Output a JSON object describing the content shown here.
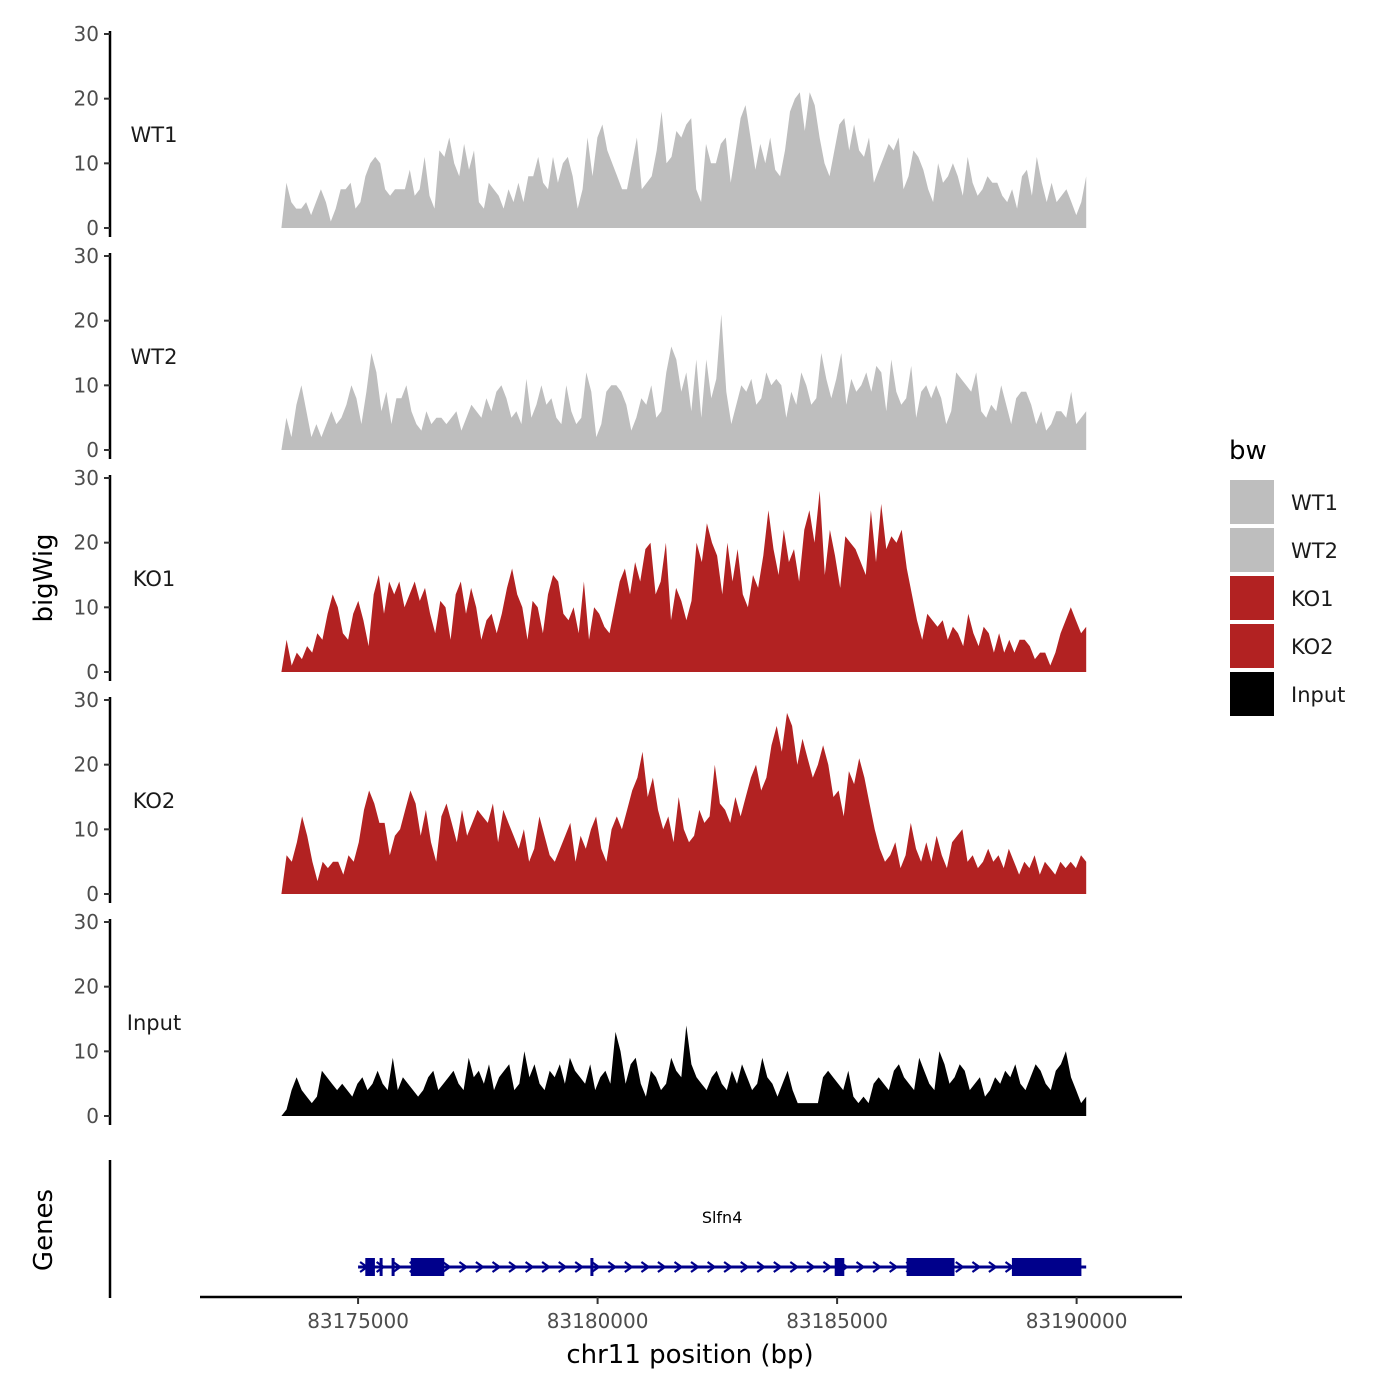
{
  "chart_data": {
    "type": "area",
    "title": "",
    "xlabel": "chr11 position (bp)",
    "ylabel": "bigWig",
    "genes_label": "Genes",
    "xlim": [
      83171700,
      83192200
    ],
    "ylim": [
      0,
      30
    ],
    "x_ticks": [
      83175000,
      83180000,
      83185000,
      83190000
    ],
    "x_tick_labels": [
      "83175000",
      "83180000",
      "83185000",
      "83190000"
    ],
    "y_ticks": [
      0,
      10,
      20,
      30
    ],
    "y_tick_labels": [
      "0",
      "10",
      "20",
      "30"
    ],
    "x_start": 83173400,
    "x_end": 83190200,
    "legend": {
      "title": "bw",
      "placement": "right",
      "entries": [
        {
          "label": "WT1",
          "color": "#bebebe"
        },
        {
          "label": "WT2",
          "color": "#bebebe"
        },
        {
          "label": "KO1",
          "color": "#b22222"
        },
        {
          "label": "KO2",
          "color": "#b22222"
        },
        {
          "label": "Input",
          "color": "#000000"
        }
      ]
    },
    "series": [
      {
        "name": "WT1",
        "color": "#bebebe",
        "values": [
          0,
          7,
          4,
          3,
          3,
          4,
          2,
          4,
          6,
          4,
          1,
          3,
          6,
          6,
          7,
          3,
          4,
          8,
          10,
          11,
          10,
          6,
          5,
          6,
          6,
          6,
          9,
          5,
          6,
          11,
          5,
          3,
          12,
          11,
          14,
          10,
          8,
          13,
          9,
          12,
          4,
          3,
          7,
          6,
          5,
          3,
          6,
          4,
          7,
          4,
          8,
          8,
          11,
          7,
          6,
          11,
          7,
          10,
          11,
          8,
          3,
          6,
          14,
          8,
          14,
          16,
          12,
          10,
          8,
          6,
          6,
          10,
          14,
          6,
          7,
          8,
          12,
          18,
          10,
          11,
          15,
          14,
          16,
          17,
          6,
          4,
          13,
          10,
          10,
          13,
          14,
          7,
          12,
          17,
          19,
          14,
          9,
          13,
          10,
          14,
          9,
          8,
          12,
          18,
          20,
          21,
          15,
          21,
          19,
          14,
          10,
          8,
          12,
          16,
          17,
          12,
          16,
          12,
          11,
          14,
          7,
          9,
          11,
          13,
          12,
          14,
          6,
          8,
          12,
          11,
          9,
          6,
          4,
          10,
          7,
          8,
          10,
          8,
          5,
          11,
          7,
          5,
          6,
          8,
          7,
          7,
          5,
          4,
          6,
          3,
          8,
          9,
          5,
          11,
          7,
          4,
          7,
          4,
          5,
          6,
          4,
          2,
          4,
          8
        ]
      },
      {
        "name": "WT2",
        "color": "#bebebe",
        "values": [
          0,
          5,
          2,
          7,
          10,
          6,
          2,
          4,
          2,
          4,
          6,
          4,
          5,
          7,
          10,
          8,
          4,
          9,
          15,
          12,
          6,
          9,
          4,
          8,
          8,
          10,
          6,
          4,
          3,
          6,
          4,
          5,
          5,
          4,
          5,
          6,
          3,
          5,
          7,
          6,
          5,
          8,
          6,
          9,
          10,
          8,
          5,
          6,
          4,
          11,
          5,
          7,
          10,
          7,
          8,
          5,
          4,
          10,
          6,
          4,
          5,
          12,
          9,
          2,
          4,
          9,
          10,
          10,
          9,
          7,
          3,
          5,
          8,
          7,
          10,
          5,
          6,
          12,
          16,
          14,
          9,
          12,
          6,
          14,
          5,
          14,
          8,
          11,
          21,
          9,
          4,
          7,
          10,
          9,
          11,
          7,
          8,
          12,
          10,
          11,
          10,
          5,
          9,
          7,
          12,
          10,
          7,
          8,
          15,
          11,
          8,
          11,
          15,
          7,
          11,
          9,
          10,
          12,
          9,
          13,
          12,
          6,
          14,
          9,
          7,
          8,
          13,
          5,
          9,
          10,
          8,
          10,
          8,
          4,
          6,
          12,
          11,
          10,
          9,
          12,
          6,
          5,
          7,
          6,
          10,
          7,
          4,
          8,
          9,
          9,
          7,
          4,
          6,
          3,
          4,
          6,
          6,
          5,
          9,
          4,
          5,
          6
        ]
      },
      {
        "name": "KO1",
        "color": "#b22222",
        "values": [
          0,
          5,
          1,
          3,
          2,
          4,
          3,
          6,
          5,
          9,
          12,
          10,
          6,
          5,
          9,
          11,
          8,
          4,
          12,
          15,
          9,
          14,
          12,
          14,
          10,
          12,
          14,
          11,
          13,
          9,
          6,
          11,
          10,
          5,
          12,
          14,
          9,
          13,
          10,
          5,
          8,
          9,
          6,
          9,
          13,
          16,
          12,
          10,
          5,
          11,
          10,
          6,
          12,
          15,
          14,
          9,
          8,
          10,
          6,
          14,
          5,
          10,
          9,
          7,
          6,
          10,
          14,
          16,
          12,
          17,
          14,
          19,
          20,
          12,
          14,
          20,
          8,
          13,
          11,
          8,
          11,
          20,
          17,
          23,
          20,
          18,
          12,
          20,
          14,
          19,
          12,
          10,
          15,
          13,
          18,
          25,
          19,
          15,
          22,
          17,
          19,
          14,
          22,
          25,
          20,
          28,
          15,
          22,
          18,
          13,
          21,
          20,
          19,
          17,
          15,
          25,
          17,
          26,
          19,
          21,
          20,
          22,
          16,
          12,
          8,
          5,
          9,
          8,
          7,
          8,
          5,
          7,
          6,
          4,
          9,
          6,
          4,
          7,
          6,
          3,
          6,
          3,
          5,
          3,
          5,
          5,
          4,
          2,
          3,
          3,
          1,
          3,
          6,
          8,
          10,
          8,
          6,
          7
        ]
      },
      {
        "name": "KO2",
        "color": "#b22222",
        "values": [
          0,
          6,
          5,
          8,
          12,
          9,
          5,
          2,
          5,
          4,
          5,
          5,
          3,
          6,
          5,
          8,
          13,
          16,
          14,
          11,
          11,
          6,
          9,
          10,
          13,
          16,
          14,
          9,
          13,
          8,
          5,
          12,
          14,
          11,
          8,
          13,
          9,
          11,
          13,
          12,
          11,
          14,
          8,
          13,
          11,
          9,
          7,
          10,
          5,
          7,
          12,
          9,
          6,
          5,
          7,
          9,
          11,
          5,
          9,
          7,
          10,
          12,
          7,
          5,
          10,
          12,
          10,
          13,
          16,
          18,
          22,
          15,
          18,
          13,
          10,
          12,
          8,
          15,
          10,
          8,
          9,
          13,
          11,
          12,
          20,
          14,
          13,
          11,
          15,
          12,
          15,
          18,
          20,
          16,
          18,
          23,
          26,
          22,
          28,
          26,
          20,
          24,
          21,
          18,
          20,
          23,
          20,
          15,
          16,
          12,
          19,
          17,
          21,
          18,
          14,
          10,
          7,
          5,
          6,
          8,
          4,
          6,
          11,
          7,
          5,
          8,
          5,
          9,
          6,
          4,
          8,
          9,
          10,
          5,
          6,
          4,
          5,
          7,
          5,
          6,
          4,
          7,
          5,
          3,
          5,
          4,
          6,
          3,
          5,
          4,
          3,
          5,
          4,
          5,
          4,
          6,
          5
        ]
      },
      {
        "name": "Input",
        "color": "#000000",
        "values": [
          0,
          1,
          4,
          6,
          4,
          3,
          2,
          3,
          7,
          6,
          5,
          4,
          5,
          4,
          3,
          5,
          6,
          4,
          5,
          7,
          5,
          4,
          9,
          4,
          6,
          5,
          4,
          3,
          4,
          6,
          7,
          4,
          5,
          6,
          7,
          5,
          4,
          9,
          6,
          7,
          5,
          8,
          4,
          6,
          7,
          8,
          4,
          5,
          10,
          6,
          8,
          5,
          4,
          7,
          6,
          8,
          5,
          9,
          7,
          6,
          5,
          8,
          4,
          6,
          7,
          5,
          13,
          10,
          5,
          8,
          9,
          5,
          3,
          7,
          6,
          4,
          5,
          9,
          7,
          6,
          14,
          8,
          6,
          5,
          4,
          6,
          7,
          5,
          4,
          7,
          5,
          8,
          6,
          4,
          5,
          9,
          6,
          5,
          3,
          5,
          7,
          4,
          2,
          2,
          2,
          2,
          2,
          6,
          7,
          6,
          5,
          4,
          7,
          3,
          2,
          3,
          2,
          5,
          6,
          5,
          4,
          7,
          8,
          6,
          5,
          4,
          9,
          7,
          5,
          4,
          10,
          8,
          5,
          6,
          8,
          7,
          4,
          5,
          6,
          3,
          4,
          6,
          5,
          7,
          6,
          8,
          5,
          4,
          6,
          8,
          7,
          5,
          4,
          7,
          8,
          10,
          6,
          4,
          2,
          3
        ]
      }
    ],
    "gene": {
      "name": "Slfn4",
      "start": 83175000,
      "end": 83190200,
      "strand": "+",
      "color": "#00008b",
      "exons": [
        {
          "start": 83175150,
          "end": 83175350
        },
        {
          "start": 83175450,
          "end": 83175500
        },
        {
          "start": 83175700,
          "end": 83175750
        },
        {
          "start": 83176100,
          "end": 83176800
        },
        {
          "start": 83179850,
          "end": 83179900
        },
        {
          "start": 83184950,
          "end": 83185150
        },
        {
          "start": 83186450,
          "end": 83187450
        },
        {
          "start": 83188650,
          "end": 83190100
        }
      ]
    }
  }
}
